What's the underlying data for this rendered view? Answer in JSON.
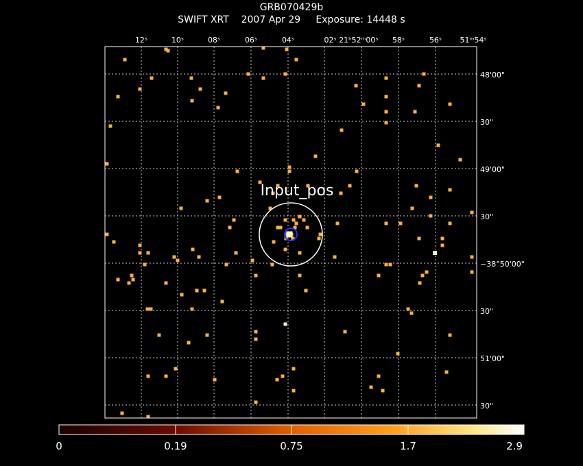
{
  "header": {
    "title": "GRB070429b",
    "subtitle": "SWIFT XRT    2007 Apr 29     Exposure: 14448 s"
  },
  "image": {
    "ra_tick_labels": [
      "12ˢ",
      "10ˢ",
      "08ˢ",
      "06ˢ",
      "04ˢ",
      "02ˢ 21ʰ52ᵐ00ˢ",
      "58ˢ",
      "56ˢ",
      "51ᵐ54ˢ"
    ],
    "dec_tick_labels": [
      "48'00\"",
      "30\"",
      "49'00\"",
      "30\"",
      "−38°50'00\"",
      "30\"",
      "51'00\"",
      "30\""
    ],
    "source_label": "Input_pos",
    "colorbar_labels": [
      "0",
      "0.19",
      "0.75",
      "1.7",
      "2.9"
    ],
    "colorbar_colors": [
      "#ffffff",
      "#5a0000",
      "#c84000",
      "#ff8800",
      "#ffd060",
      "#ffffff"
    ],
    "photon_color": "#ffb040",
    "bright_photon_color": "#fff6c8",
    "circle_color": "#ffffff",
    "error_circle_color": "#2233ff"
  }
}
